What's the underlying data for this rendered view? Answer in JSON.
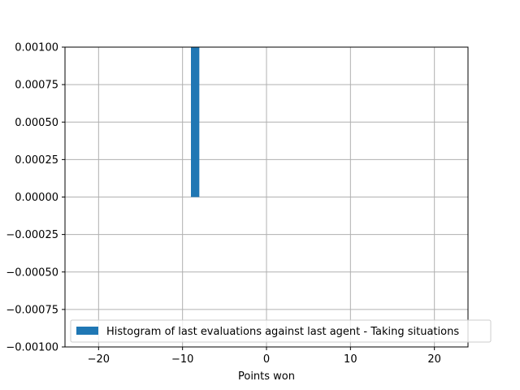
{
  "chart_data": {
    "type": "bar",
    "title": "",
    "xlabel": "Points won",
    "ylabel": "",
    "xlim": [
      -24,
      24
    ],
    "ylim": [
      -0.001,
      0.001
    ],
    "xticks": [
      -20,
      -10,
      0,
      10,
      20
    ],
    "xtick_labels": [
      "−20",
      "−10",
      "0",
      "10",
      "20"
    ],
    "yticks": [
      -0.001,
      -0.00075,
      -0.0005,
      -0.00025,
      0.0,
      0.00025,
      0.0005,
      0.00075,
      0.001
    ],
    "ytick_labels": [
      "−0.00100",
      "−0.00075",
      "−0.00050",
      "−0.00025",
      "0.00000",
      "0.00025",
      "0.00050",
      "0.00075",
      "0.00100"
    ],
    "grid": true,
    "legend_position": "lower-right",
    "series": [
      {
        "name": "Histogram of last evaluations against last agent - Taking situations",
        "color": "#1f77b4",
        "bars": [
          {
            "x_start": -9,
            "x_end": -8,
            "value": 0.001
          }
        ]
      }
    ]
  }
}
